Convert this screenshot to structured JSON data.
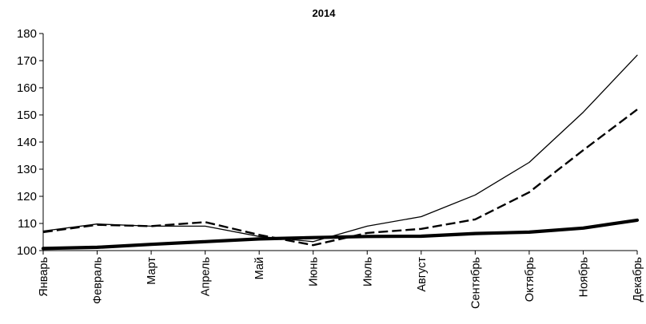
{
  "chart_data": {
    "type": "line",
    "title": "2014",
    "xlabel": "",
    "ylabel": "",
    "ylim": [
      100,
      180
    ],
    "yticks": [
      100,
      110,
      120,
      130,
      140,
      150,
      160,
      170,
      180
    ],
    "categories": [
      "Январь",
      "Февраль",
      "Март",
      "Апрель",
      "Май",
      "Июнь",
      "Июль",
      "Август",
      "Сентябрь",
      "Октябрь",
      "Ноябрь",
      "Декабрь"
    ],
    "grid": false,
    "series": [
      {
        "style": "thin-solid",
        "color": "#000000",
        "values": [
          107.2,
          109.8,
          109.0,
          109.0,
          105.2,
          103.3,
          109.0,
          112.5,
          120.5,
          132.5,
          151.0,
          172.0
        ]
      },
      {
        "style": "dashed",
        "color": "#000000",
        "values": [
          106.8,
          109.5,
          109.0,
          110.5,
          105.8,
          102.0,
          106.5,
          108.0,
          111.5,
          121.5,
          137.0,
          152.0
        ]
      },
      {
        "style": "thick-solid",
        "color": "#000000",
        "values": [
          100.8,
          101.2,
          102.3,
          103.3,
          104.3,
          104.8,
          105.2,
          105.3,
          106.3,
          106.8,
          108.3,
          111.2
        ]
      }
    ]
  }
}
